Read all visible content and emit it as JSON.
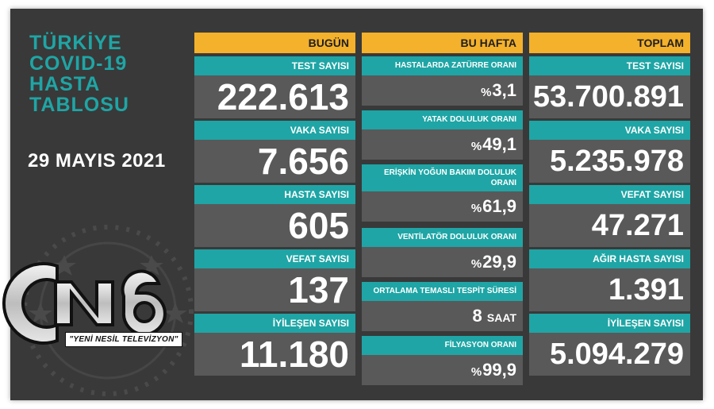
{
  "title_lines": [
    "TÜRKİYE",
    "COVID-19",
    "HASTA",
    "TABLOSU"
  ],
  "date": "29 MAYIS 2021",
  "logo": {
    "mark": "CN6",
    "tagline": "\"YENİ NESİL TELEVİZYON\""
  },
  "columns": {
    "today": {
      "header": "BUGÜN",
      "stats": [
        {
          "label": "TEST SAYISI",
          "value": "222.613"
        },
        {
          "label": "VAKA SAYISI",
          "value": "7.656"
        },
        {
          "label": "HASTA SAYISI",
          "value": "605"
        },
        {
          "label": "VEFAT SAYISI",
          "value": "137"
        },
        {
          "label": "İYİLEŞEN SAYISI",
          "value": "11.180"
        }
      ]
    },
    "week": {
      "header": "BU HAFTA",
      "stats": [
        {
          "label": "HASTALARDA ZATÜRRE ORANI",
          "prefix": "%",
          "value": "3,1"
        },
        {
          "label": "YATAK DOLULUK ORANI",
          "prefix": "%",
          "value": "49,1"
        },
        {
          "label": "ERİŞKİN YOĞUN BAKIM DOLULUK ORANI",
          "prefix": "%",
          "value": "61,9"
        },
        {
          "label": "VENTİLATÖR DOLULUK ORANI",
          "prefix": "%",
          "value": "29,9"
        },
        {
          "label": "ORTALAMA TEMASLI TESPİT SÜRESİ",
          "value": "8",
          "suffix": "SAAT"
        },
        {
          "label": "FİLYASYON ORANI",
          "prefix": "%",
          "value": "99,9"
        }
      ]
    },
    "total": {
      "header": "TOPLAM",
      "stats": [
        {
          "label": "TEST SAYISI",
          "value": "53.700.891"
        },
        {
          "label": "VAKA SAYISI",
          "value": "5.235.978"
        },
        {
          "label": "VEFAT SAYISI",
          "value": "47.271"
        },
        {
          "label": "AĞIR HASTA SAYISI",
          "value": "1.391"
        },
        {
          "label": "İYİLEŞEN SAYISI",
          "value": "5.094.279"
        }
      ]
    }
  },
  "colors": {
    "background": "#393939",
    "teal": "#1fa5a5",
    "header": "#f4b12b",
    "value_bg": "#595959"
  }
}
